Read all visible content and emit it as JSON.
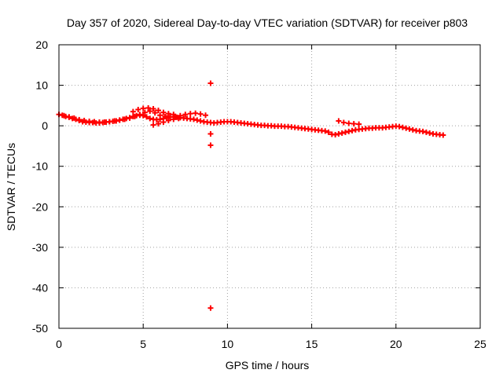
{
  "chart_data": {
    "type": "scatter",
    "title": "Day 357 of 2020, Sidereal Day-to-day VTEC variation (SDTVAR) for receiver p803",
    "xlabel": "GPS time / hours",
    "ylabel": "SDTVAR / TECUs",
    "xlim": [
      0,
      25
    ],
    "ylim": [
      -50,
      20
    ],
    "xticks": [
      0,
      5,
      10,
      15,
      20,
      25
    ],
    "yticks": [
      -50,
      -40,
      -30,
      -20,
      -10,
      0,
      10,
      20
    ],
    "grid": true,
    "marker": "+",
    "series": [
      {
        "name": "SDTVAR",
        "color": "#ff0000",
        "x": [
          0.0,
          0.2,
          0.4,
          0.6,
          0.8,
          1.0,
          1.2,
          1.4,
          1.6,
          1.8,
          2.0,
          2.2,
          2.4,
          2.6,
          2.8,
          3.0,
          3.2,
          3.4,
          3.6,
          3.8,
          4.0,
          4.2,
          4.4,
          4.6,
          4.8,
          5.0,
          5.2,
          5.4,
          5.6,
          5.8,
          6.0,
          6.2,
          6.4,
          6.6,
          6.8,
          7.0,
          7.2,
          7.4,
          7.6,
          7.8,
          8.0,
          8.2,
          8.4,
          8.6,
          8.8,
          9.0,
          9.2,
          9.4,
          9.6,
          9.8,
          10.0,
          10.2,
          10.4,
          10.6,
          10.8,
          11.0,
          11.2,
          11.4,
          11.6,
          11.8,
          12.0,
          12.2,
          12.4,
          12.6,
          12.8,
          13.0,
          13.2,
          13.4,
          13.6,
          13.8,
          14.0,
          14.2,
          14.4,
          14.6,
          14.8,
          15.0,
          15.2,
          15.4,
          15.6,
          15.8,
          16.0,
          16.2,
          16.4,
          16.6,
          16.8,
          17.0,
          17.2,
          17.4,
          17.6,
          17.8,
          18.0,
          18.2,
          18.4,
          18.6,
          18.8,
          19.0,
          19.2,
          19.4,
          19.6,
          19.8,
          20.0,
          20.2,
          20.4,
          20.6,
          20.8,
          21.0,
          21.2,
          21.4,
          21.6,
          21.8,
          22.0,
          22.2,
          22.4,
          22.6,
          22.8,
          0.3,
          0.6,
          0.9,
          1.2,
          1.5,
          1.8,
          2.1,
          2.4,
          2.7,
          3.0,
          3.3,
          3.6,
          3.9,
          4.2,
          4.5,
          4.8,
          5.1,
          5.4,
          5.7,
          6.0,
          6.3,
          6.6,
          6.9,
          7.2,
          7.5,
          7.8,
          8.1,
          8.4,
          8.7,
          4.4,
          4.7,
          5.0,
          5.3,
          5.6,
          5.9,
          6.2,
          6.5,
          6.8,
          5.6,
          5.9,
          6.2,
          6.5,
          6.8,
          7.1,
          16.6,
          16.9,
          17.2,
          17.5,
          17.8,
          9.0,
          9.0,
          9.0,
          9.0
        ],
        "y": [
          2.8,
          2.6,
          2.3,
          2.1,
          1.8,
          1.6,
          1.3,
          1.0,
          0.9,
          0.8,
          0.8,
          0.7,
          0.7,
          0.8,
          0.9,
          1.0,
          1.1,
          1.2,
          1.4,
          1.6,
          1.8,
          2.0,
          2.3,
          2.5,
          2.6,
          2.5,
          2.2,
          1.8,
          1.6,
          1.5,
          1.6,
          1.8,
          2.0,
          2.2,
          2.2,
          2.1,
          2.0,
          1.9,
          1.8,
          1.7,
          1.6,
          1.4,
          1.2,
          1.0,
          0.9,
          0.8,
          0.7,
          0.8,
          0.9,
          1.0,
          1.0,
          1.0,
          0.9,
          0.8,
          0.7,
          0.6,
          0.5,
          0.4,
          0.3,
          0.2,
          0.1,
          0.1,
          0.0,
          0.0,
          -0.1,
          -0.1,
          -0.1,
          -0.2,
          -0.2,
          -0.3,
          -0.4,
          -0.5,
          -0.6,
          -0.7,
          -0.8,
          -0.9,
          -1.0,
          -1.1,
          -1.2,
          -1.3,
          -1.6,
          -2.1,
          -2.2,
          -2.0,
          -1.8,
          -1.6,
          -1.4,
          -1.2,
          -1.0,
          -0.9,
          -0.8,
          -0.7,
          -0.6,
          -0.6,
          -0.5,
          -0.5,
          -0.5,
          -0.4,
          -0.3,
          -0.2,
          -0.1,
          -0.2,
          -0.4,
          -0.6,
          -0.8,
          -1.0,
          -1.2,
          -1.3,
          -1.4,
          -1.6,
          -1.8,
          -2.0,
          -2.1,
          -2.2,
          -2.3,
          2.5,
          2.2,
          1.9,
          1.5,
          1.3,
          1.1,
          1.0,
          0.9,
          0.9,
          1.0,
          1.2,
          1.4,
          1.6,
          1.9,
          2.3,
          2.8,
          3.3,
          3.6,
          3.2,
          2.6,
          2.3,
          2.2,
          2.3,
          2.5,
          2.8,
          3.0,
          3.1,
          2.9,
          2.6,
          3.5,
          4.0,
          4.3,
          4.4,
          4.2,
          3.8,
          3.3,
          3.0,
          2.8,
          0.2,
          0.5,
          0.9,
          1.3,
          1.6,
          1.8,
          1.2,
          0.8,
          0.6,
          0.5,
          0.4,
          10.5,
          -2.0,
          -4.8,
          -45.0
        ]
      }
    ]
  }
}
